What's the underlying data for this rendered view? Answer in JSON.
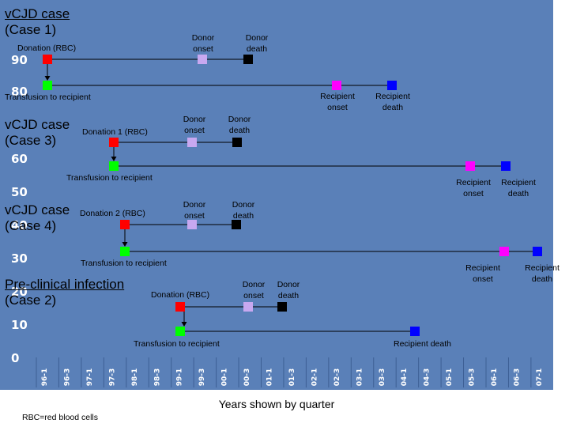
{
  "y_ticks": [
    "90",
    "80",
    "60",
    "50",
    "40",
    "30",
    "20",
    "10",
    "0"
  ],
  "x_ticks": [
    "96-1",
    "96-3",
    "97-1",
    "97-3",
    "98-1",
    "98-3",
    "99-1",
    "99-3",
    "00-1",
    "00-3",
    "01-1",
    "01-3",
    "02-1",
    "02-3",
    "03-1",
    "03-3",
    "04-1",
    "04-3",
    "05-1",
    "05-3",
    "06-1",
    "06-3",
    "07-1"
  ],
  "x_axis_title": "Years shown by quarter",
  "footnote": "RBC=red blood cells",
  "colors": {
    "background": "#5a80b8",
    "donation": "#ff0000",
    "transfusion": "#00ff00",
    "donor_onset": "#c8a8f0",
    "donor_death": "#000000",
    "recipient_onset": "#ff00ff",
    "recipient_death": "#0000ff"
  },
  "cases": [
    {
      "title_line1": "vCJD case",
      "title_line2": "(Case 1)",
      "donation_label": "Donation (RBC)",
      "donor_onset_label": "Donor onset",
      "donor_death_label": "Donor death",
      "transfusion_label": "Transfusion to recipient",
      "recipient_onset_label": "Recipient onset",
      "recipient_death_label": "Recipient death"
    },
    {
      "title_line1": "vCJD case",
      "title_line2": "(Case 3)",
      "donation_label": "Donation 1 (RBC)",
      "donor_onset_label": "Donor onset",
      "donor_death_label": "Donor death",
      "transfusion_label": "Transfusion to recipient",
      "recipient_onset_label": "Recipient onset",
      "recipient_death_label": "Recipient death"
    },
    {
      "title_line1": "vCJD case",
      "title_line2": "(Case 4)",
      "donation_label": "Donation 2 (RBC)",
      "donor_onset_label": "Donor onset",
      "donor_death_label": "Donor death",
      "transfusion_label": "Transfusion to recipient",
      "recipient_onset_label": "Recipient onset",
      "recipient_death_label": "Recipient death"
    },
    {
      "title_line1": "Pre-clinical infection",
      "title_line2": "(Case 2)",
      "donation_label": "Donation (RBC)",
      "donor_onset_label": "Donor onset",
      "donor_death_label": "Donor death",
      "transfusion_label": "Transfusion to recipient",
      "recipient_death_label": "Recipient death"
    }
  ]
}
